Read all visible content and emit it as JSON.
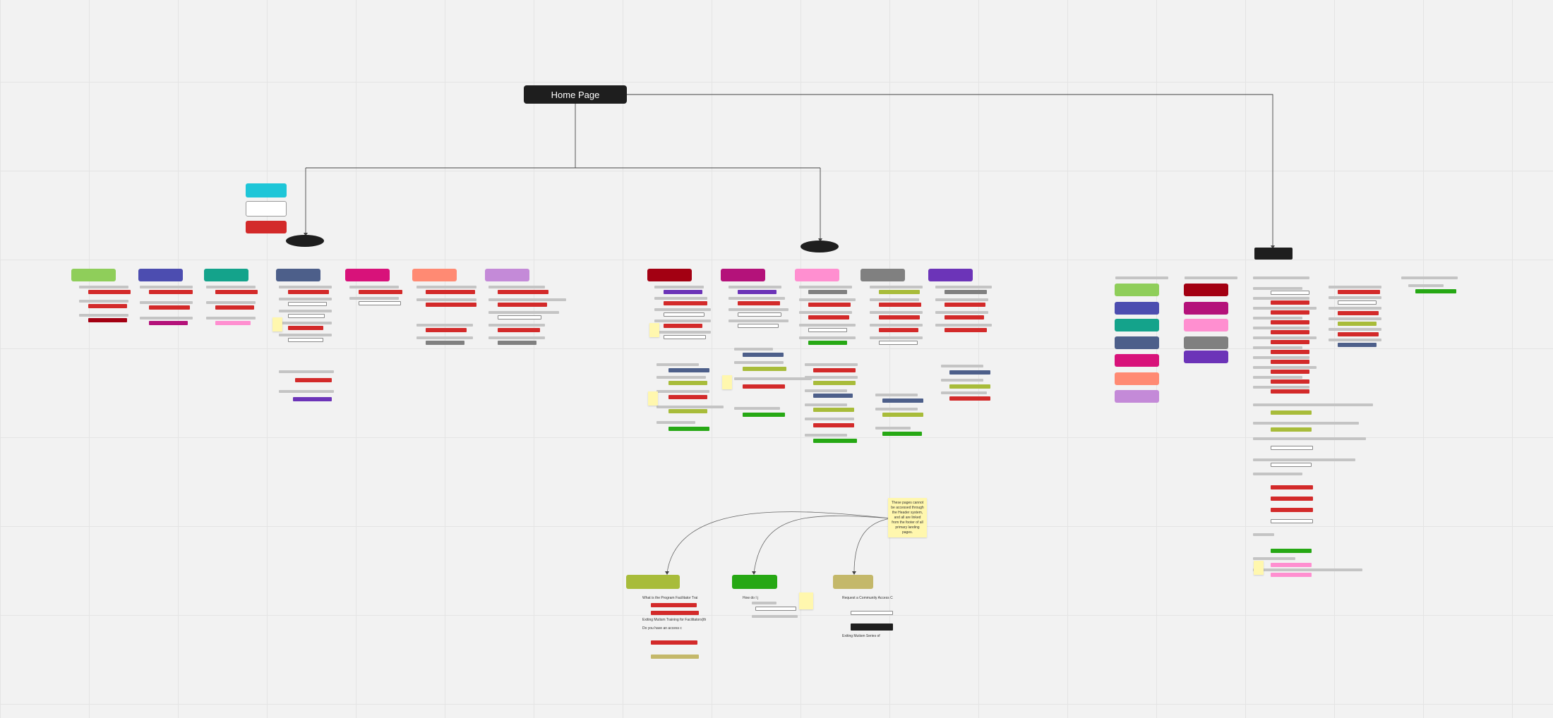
{
  "home": {
    "label": "Home Page"
  },
  "legend": [
    {
      "text": "",
      "color": "#1ec6d8"
    },
    {
      "text": "",
      "color": "#ffffff"
    },
    {
      "text": "",
      "color": "#d32a2a"
    }
  ],
  "questions": {
    "q1": "What is the Program Facilitator Trai",
    "q2": "Exiting Mutism Training for Facilitators(th",
    "q3": "Do you have an access c",
    "q4": "How do I j",
    "q5": "Request a Community Access C",
    "q6": "Exiting Mutism Series of"
  },
  "sticky_main": {
    "text": "These pages cannot be accessed through the Header system, and all are linked from the footer of all primary landing pages."
  },
  "colors": {
    "red": "#d32a2a",
    "dark": "#1e1e1e",
    "gray_bar": "#c4c4c4",
    "lime": "#8fce5a",
    "indigo": "#4c4db0",
    "teal": "#14a38b",
    "slate": "#4d5f8a",
    "magenta": "#d8127a",
    "salmon": "#ff8a73",
    "lilac": "#c48ad8",
    "maroon": "#a30012",
    "berry": "#b4127a",
    "pink": "#ff8fd0",
    "gray": "#808080",
    "purple": "#6c34b8",
    "olive": "#a8bc3a",
    "green": "#26a814",
    "khaki": "#c4b86a"
  }
}
